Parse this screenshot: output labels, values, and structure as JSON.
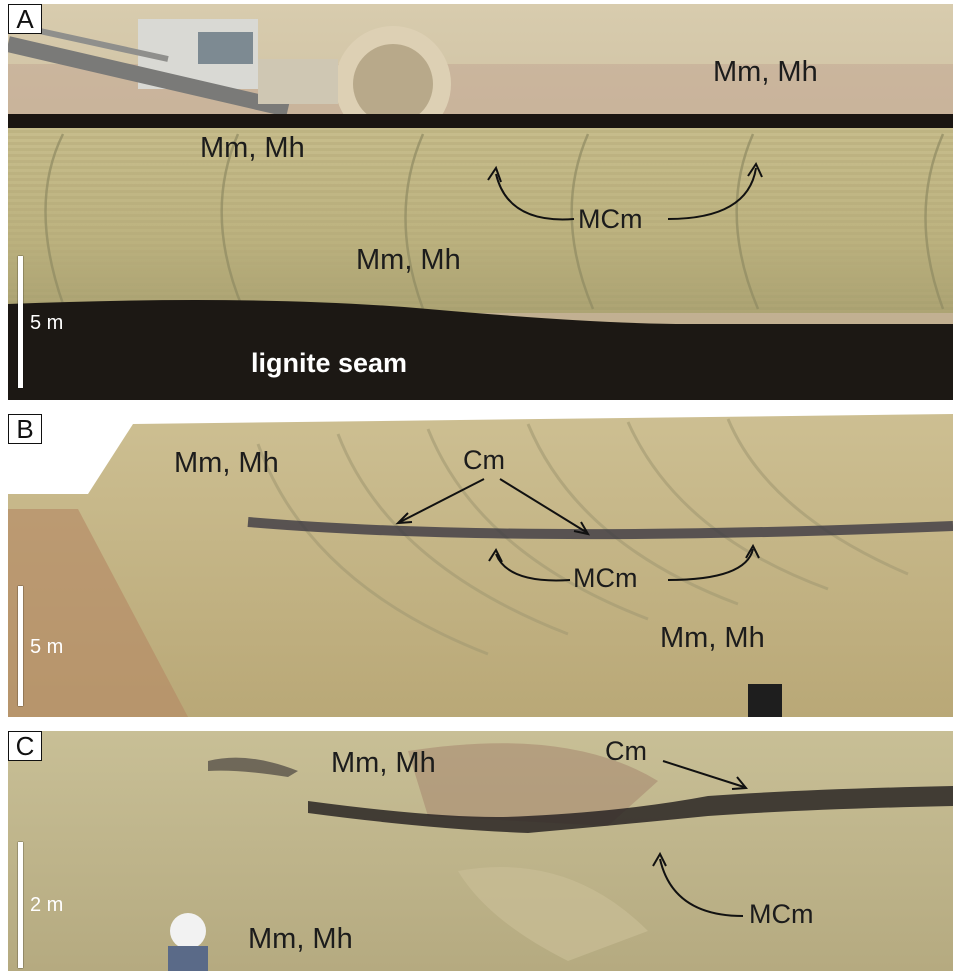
{
  "panels": [
    {
      "id": "A",
      "labels": [
        "Mm, Mh",
        "Mm, Mh",
        "Mm, Mh",
        "MCm",
        "lignite seam"
      ],
      "scale": "5 m"
    },
    {
      "id": "B",
      "labels": [
        "Mm, Mh",
        "Cm",
        "MCm",
        "Mm, Mh"
      ],
      "scale": "5 m"
    },
    {
      "id": "C",
      "labels": [
        "Mm, Mh",
        "Cm",
        "MCm",
        "Mm, Mh"
      ],
      "scale": "2 m"
    }
  ],
  "colors": {
    "sediment": "#c9bd8e",
    "lignite": "#1c1814",
    "coal_band": "#3c3a44",
    "arrow": "#111111",
    "scale_bar": "#ffffff"
  }
}
